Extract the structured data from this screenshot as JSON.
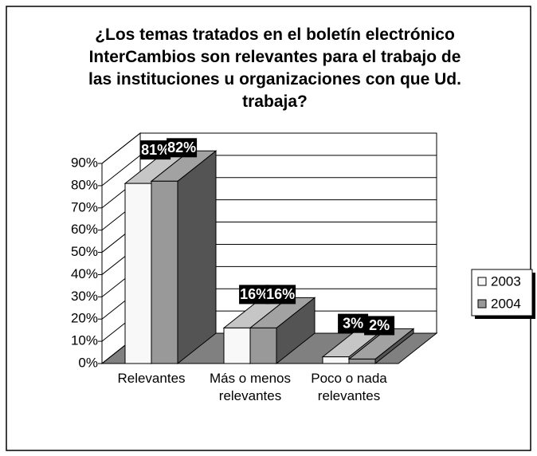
{
  "chart_data": {
    "type": "bar3d",
    "title": "¿Los temas tratados en el boletín electrónico InterCambios son relevantes para el trabajo de las instituciones u organizaciones con que Ud. trabaja?",
    "categories": [
      "Relevantes",
      "Más o menos relevantes",
      "Poco o nada relevantes"
    ],
    "series": [
      {
        "name": "2003",
        "color": "#f8f8f8",
        "values": [
          81,
          16,
          3
        ],
        "value_labels": [
          "81%",
          "16%",
          "3%"
        ]
      },
      {
        "name": "2004",
        "color": "#999999",
        "values": [
          82,
          16,
          2
        ],
        "value_labels": [
          "82%",
          "16%",
          "2%"
        ]
      }
    ],
    "ylim": [
      0,
      90
    ],
    "yticks": [
      {
        "value": 0,
        "label": "0%"
      },
      {
        "value": 10,
        "label": "10%"
      },
      {
        "value": 20,
        "label": "20%"
      },
      {
        "value": 30,
        "label": "30%"
      },
      {
        "value": 40,
        "label": "40%"
      },
      {
        "value": 50,
        "label": "50%"
      },
      {
        "value": 60,
        "label": "60%"
      },
      {
        "value": 70,
        "label": "70%"
      },
      {
        "value": 80,
        "label": "80%"
      },
      {
        "value": 90,
        "label": "90%"
      }
    ],
    "grid": true,
    "legend": "right"
  }
}
